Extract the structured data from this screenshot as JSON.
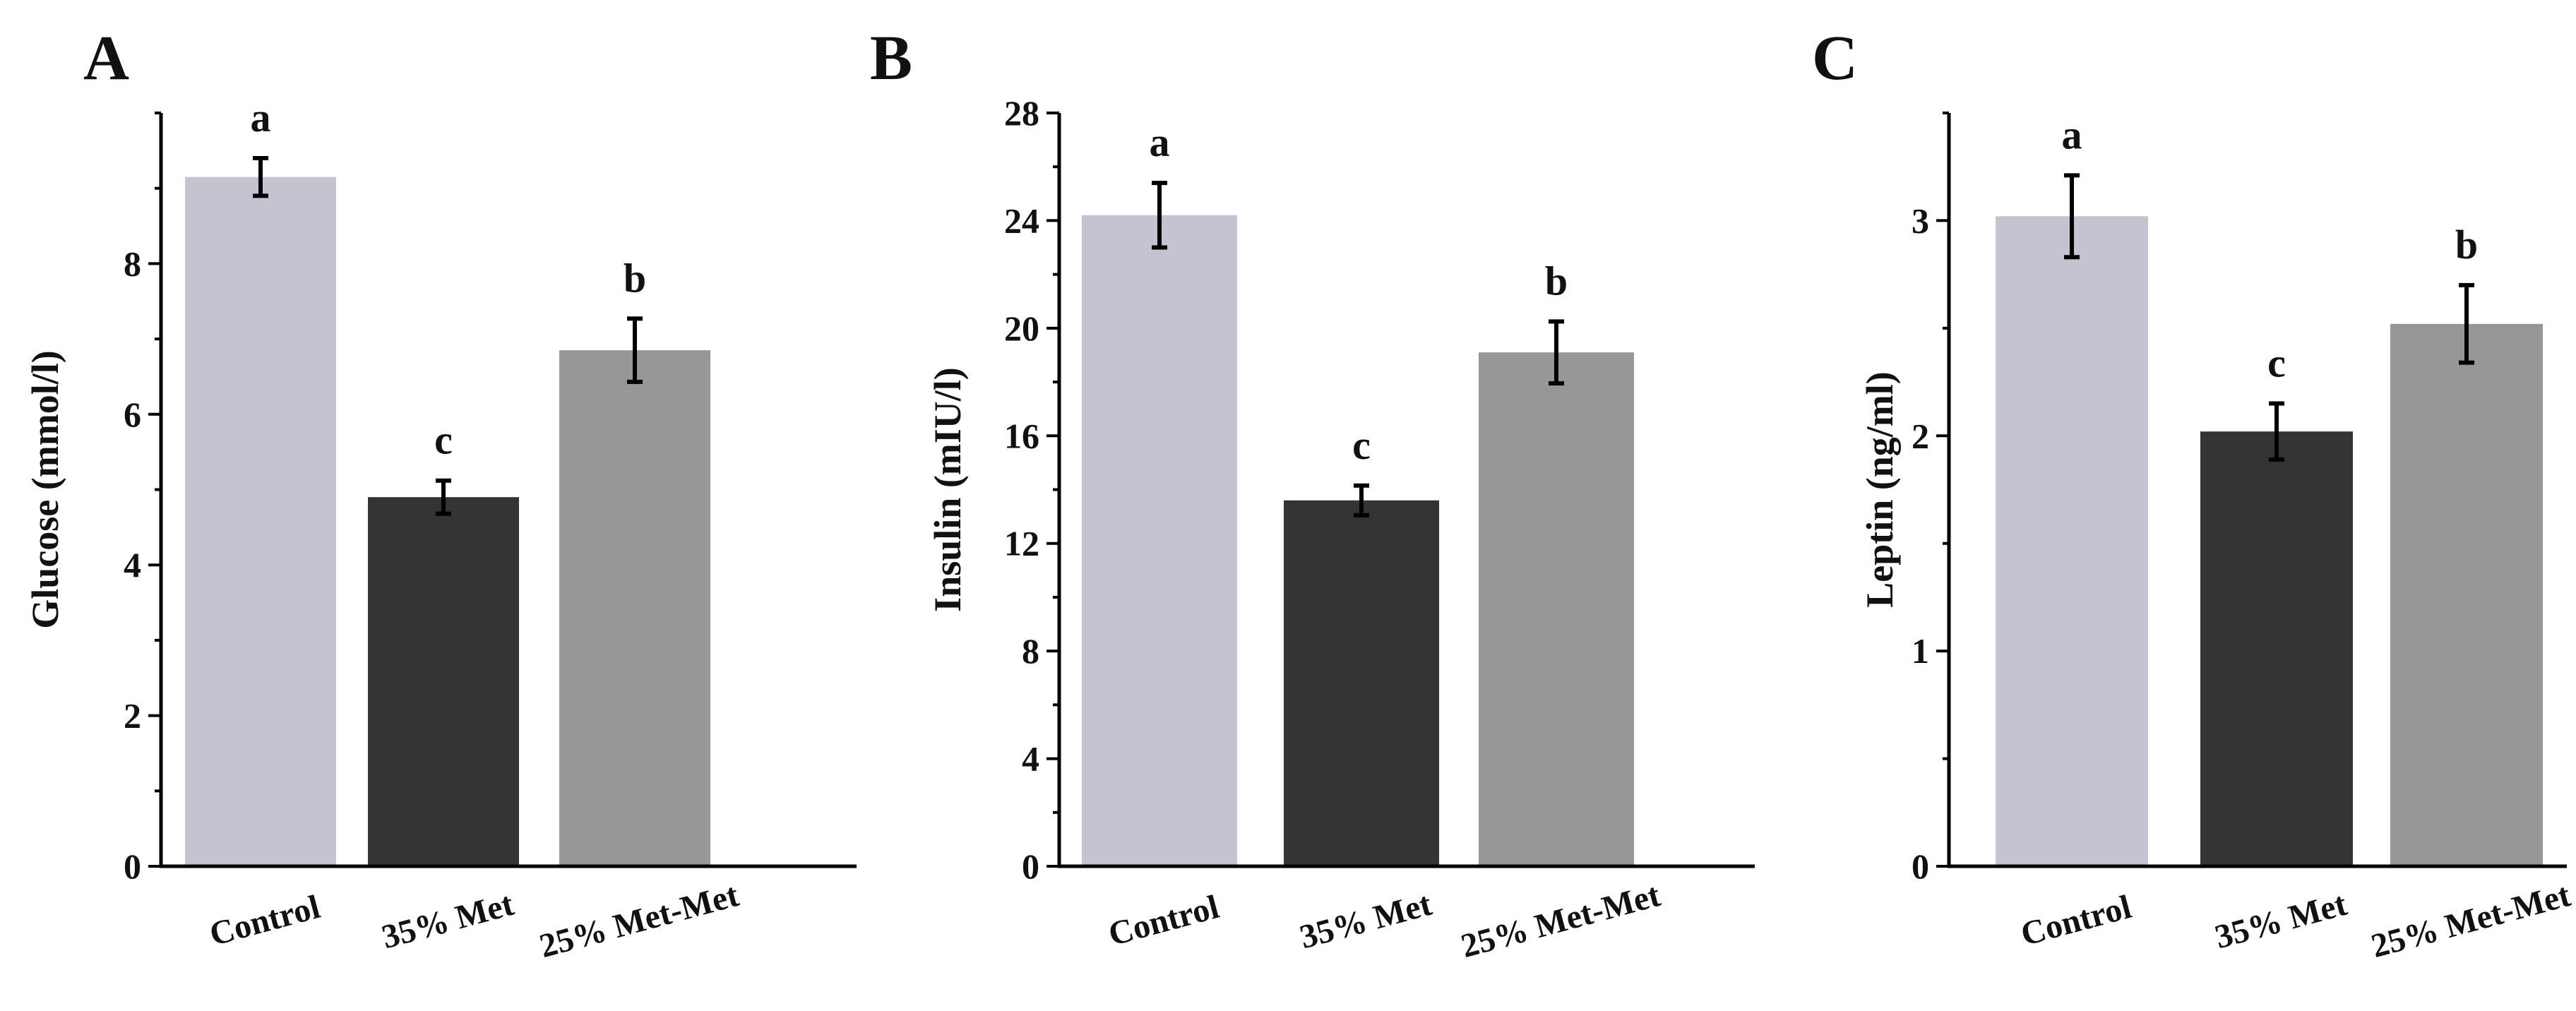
{
  "colors": {
    "control": "#c4c3cf",
    "met35": "#333333",
    "metmet25": "#979797",
    "axis": "#000000"
  },
  "chart_data": [
    {
      "type": "bar",
      "panel": "A",
      "title": "",
      "xlabel": "",
      "ylabel": "Glucose (mmol/l)",
      "categories": [
        "Control",
        "35% Met",
        "25% Met-Met"
      ],
      "values": [
        9.15,
        4.9,
        6.85
      ],
      "errors": [
        0.25,
        0.22,
        0.42
      ],
      "significance": [
        "a",
        "c",
        "b"
      ],
      "ylim": [
        0,
        10
      ],
      "yticks": [
        0,
        2,
        4,
        6,
        8
      ],
      "ytick_labels": [
        "0",
        "2",
        "4",
        "6",
        "8"
      ],
      "minor_step": 1
    },
    {
      "type": "bar",
      "panel": "B",
      "title": "",
      "xlabel": "",
      "ylabel": "Insulin (mIU/l)",
      "categories": [
        "Control",
        "35% Met",
        "25% Met-Met"
      ],
      "values": [
        24.2,
        13.6,
        19.1
      ],
      "errors": [
        1.2,
        0.55,
        1.15
      ],
      "significance": [
        "a",
        "c",
        "b"
      ],
      "ylim": [
        0,
        28
      ],
      "yticks": [
        0,
        4,
        8,
        12,
        16,
        20,
        24,
        28
      ],
      "ytick_labels": [
        "0",
        "4",
        "8",
        "12",
        "16",
        "20",
        "24",
        "28"
      ],
      "minor_step": 2
    },
    {
      "type": "bar",
      "panel": "C",
      "title": "",
      "xlabel": "",
      "ylabel": "Leptin (ng/ml)",
      "categories": [
        "Control",
        "35% Met",
        "25% Met-Met"
      ],
      "values": [
        3.02,
        2.02,
        2.52
      ],
      "errors": [
        0.19,
        0.13,
        0.18
      ],
      "significance": [
        "a",
        "c",
        "b"
      ],
      "ylim": [
        0,
        3.5
      ],
      "yticks": [
        0,
        1,
        2,
        3
      ],
      "ytick_labels": [
        "0",
        "1",
        "2",
        "3"
      ],
      "minor_step": 0.5
    }
  ]
}
